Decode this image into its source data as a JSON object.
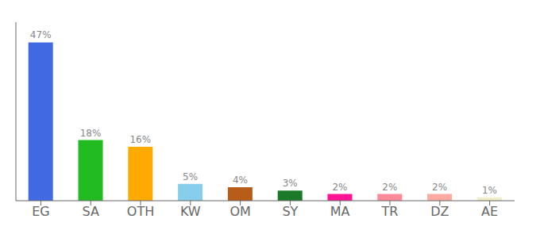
{
  "chart_data": {
    "type": "bar",
    "categories": [
      "EG",
      "SA",
      "OTH",
      "KW",
      "OM",
      "SY",
      "MA",
      "TR",
      "DZ",
      "AE"
    ],
    "values": [
      47,
      18,
      16,
      5,
      4,
      3,
      2,
      2,
      2,
      1
    ],
    "value_labels": [
      "47%",
      "18%",
      "16%",
      "5%",
      "4%",
      "3%",
      "2%",
      "2%",
      "2%",
      "1%"
    ],
    "colors": [
      "#4169e1",
      "#22bb22",
      "#ffaa00",
      "#87ceeb",
      "#b85c1a",
      "#1a7a2a",
      "#ff1493",
      "#ff8899",
      "#ffaaa0",
      "#f0eec8"
    ],
    "ylim": [
      0,
      53
    ],
    "data_labels": true,
    "tick_labels": "x",
    "grid": false
  }
}
